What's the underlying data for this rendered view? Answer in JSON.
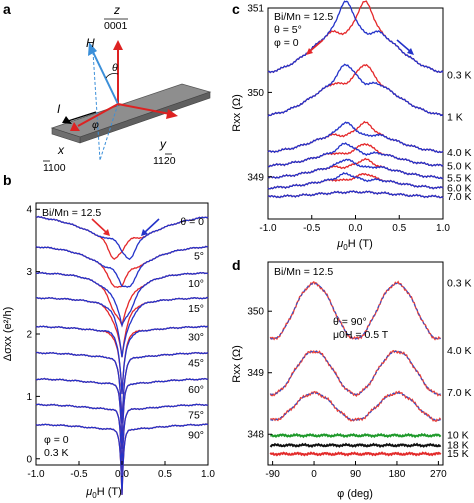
{
  "panel_labels": {
    "a": "a",
    "b": "b",
    "c": "c",
    "d": "d"
  },
  "colors": {
    "sweep_up": "#e4282a",
    "sweep_down": "#2433c9",
    "fit": "#e8413a",
    "fit_dashed": "#2a4fd1",
    "green": "#1f9a2b",
    "black": "#111111",
    "red_10": "#e32b2b",
    "slab": "#9a9a9a"
  },
  "schematic": {
    "z_label": "z",
    "c_axis": "0001",
    "h_label": "H",
    "theta_label": "θ",
    "phi_label": "φ",
    "i_label": "I",
    "x_label": "x",
    "x_dir": "1100",
    "y_label": "y",
    "y_dir": "1120"
  },
  "chart_data": [
    {
      "panel": "b",
      "type": "line",
      "xlabel_prefix": "μ",
      "xlabel_sub": "0",
      "xlabel_suffix": "H (T)",
      "ylabel": "Δσxx (e²/h)",
      "xlim": [
        -1.0,
        1.0
      ],
      "ylim": [
        -0.1,
        4.1
      ],
      "xticks": [
        "-1.0",
        "-0.5",
        "0.0",
        "0.5",
        "1.0"
      ],
      "yticks": [
        "0",
        "1",
        "2",
        "3",
        "4"
      ],
      "annotation_top": "Bi/Mn = 12.5",
      "annotation_bottom": [
        "φ = 0",
        "0.3 K"
      ],
      "sweep_arrows": true,
      "series": [
        {
          "label": "θ = 0",
          "baseline": 3.97,
          "dip": 0.55,
          "width": 0.55,
          "hyst": 0.22
        },
        {
          "label": "5°",
          "baseline": 3.42,
          "dip": 0.55,
          "width": 0.3,
          "hyst": 0.18
        },
        {
          "label": "10°",
          "baseline": 2.98,
          "dip": 0.75,
          "width": 0.15,
          "hyst": 0.14
        },
        {
          "label": "15°",
          "baseline": 2.58,
          "dip": 0.85,
          "width": 0.08,
          "hyst": 0.08
        },
        {
          "label": "30°",
          "baseline": 2.12,
          "dip": 1.0,
          "width": 0.04,
          "hyst": 0.03
        },
        {
          "label": "45°",
          "baseline": 1.7,
          "dip": 1.05,
          "width": 0.03,
          "hyst": 0.0
        },
        {
          "label": "60°",
          "baseline": 1.28,
          "dip": 1.05,
          "width": 0.02,
          "hyst": 0.0
        },
        {
          "label": "75°",
          "baseline": 0.87,
          "dip": 1.0,
          "width": 0.02,
          "hyst": 0.0
        },
        {
          "label": "90°",
          "baseline": 0.55,
          "dip": 1.05,
          "width": 0.02,
          "hyst": 0.0
        }
      ]
    },
    {
      "panel": "c",
      "type": "line",
      "xlabel_prefix": "μ",
      "xlabel_sub": "0",
      "xlabel_suffix": "H (T)",
      "ylabel": "Rxx (Ω)",
      "xlim": [
        -1.0,
        1.0
      ],
      "ylim": [
        348.5,
        351.0
      ],
      "xticks": [
        "-1.0",
        "-0.5",
        "0.0",
        "0.5",
        "1.0"
      ],
      "yticks": [
        "349",
        "350",
        "351"
      ],
      "annotation_lines": [
        "Bi/Mn = 12.5",
        "θ = 5°",
        "φ = 0"
      ],
      "sweep_arrows": true,
      "series": [
        {
          "label": "0.3 K",
          "edge": 350.2,
          "peak": 350.85,
          "hyst": 0.25
        },
        {
          "label": "1 K",
          "edge": 349.7,
          "peak": 350.2,
          "hyst": 0.15
        },
        {
          "label": "4.0 K",
          "edge": 349.28,
          "peak": 349.55,
          "hyst": 0.1
        },
        {
          "label": "5.0 K",
          "edge": 349.12,
          "peak": 349.32,
          "hyst": 0.08
        },
        {
          "label": "5.5 K",
          "edge": 348.98,
          "peak": 349.15,
          "hyst": 0.06
        },
        {
          "label": "6.0 K",
          "edge": 348.86,
          "peak": 348.99,
          "hyst": 0.05
        },
        {
          "label": "7.0 K",
          "edge": 348.76,
          "peak": 348.82,
          "hyst": 0.0
        }
      ]
    },
    {
      "panel": "d",
      "type": "line",
      "xlabel": "φ (deg)",
      "ylabel": "Rxx (Ω)",
      "xlim": [
        -100,
        280
      ],
      "ylim": [
        347.5,
        350.8
      ],
      "xticks": [
        "-90",
        "0",
        "90",
        "180",
        "270"
      ],
      "yticks": [
        "348",
        "349",
        "350"
      ],
      "annotation_top": "Bi/Mn = 12.5",
      "annotation_mid": [
        "θ = 90°",
        "μ0H = 0.5 T"
      ],
      "series": [
        {
          "label": "0.3 K",
          "mean": 350.0,
          "amp": 0.45,
          "color": "#e8413a"
        },
        {
          "label": "4.0 K",
          "mean": 349.0,
          "amp": 0.35,
          "color": "#e8413a"
        },
        {
          "label": "7.0 K",
          "mean": 348.45,
          "amp": 0.22,
          "color": "#e8413a"
        },
        {
          "label": "10 K",
          "mean": 347.98,
          "amp": 0.0,
          "color": "#1f9a2b"
        },
        {
          "label": "18 K",
          "mean": 347.82,
          "amp": 0.0,
          "color": "#111111"
        },
        {
          "label": "15 K",
          "mean": 347.68,
          "amp": 0.0,
          "color": "#e32b2b"
        }
      ]
    }
  ]
}
